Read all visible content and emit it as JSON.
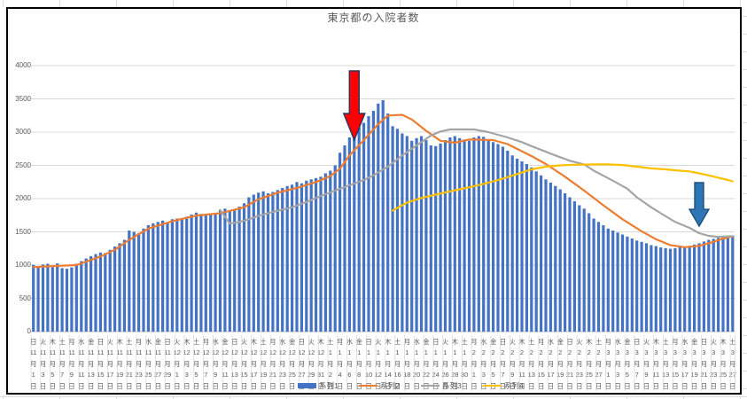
{
  "chart": {
    "title": "東京都の入院者数",
    "border_color": "#000000",
    "background": "#FFFFFF",
    "gridline_color": "#D9D9D9",
    "axis_text_color": "#595959"
  },
  "chart_data": {
    "type": "bar",
    "title": "東京都の入院者数",
    "xlabel": "",
    "ylabel": "",
    "ylim": [
      0,
      4000
    ],
    "ytick_step": 500,
    "yticks": [
      0,
      500,
      1000,
      1500,
      2000,
      2500,
      3000,
      3500,
      4000
    ],
    "x_range": "2020年11月1日(日)〜2021年3月27日(土) 毎日, ラベルは2日おき",
    "grid": true,
    "legend_position": "bottom",
    "series": [
      {
        "name": "系列1",
        "type": "bar",
        "color": "#4472C4",
        "values": [
          1005,
          985,
          1010,
          1020,
          970,
          1025,
          955,
          945,
          965,
          1020,
          1060,
          1100,
          1135,
          1165,
          1190,
          1180,
          1230,
          1280,
          1330,
          1380,
          1520,
          1500,
          1480,
          1550,
          1600,
          1630,
          1650,
          1670,
          1640,
          1690,
          1700,
          1690,
          1730,
          1760,
          1790,
          1770,
          1750,
          1760,
          1780,
          1830,
          1850,
          1820,
          1840,
          1880,
          1930,
          2020,
          2060,
          2090,
          2110,
          2080,
          2100,
          2130,
          2160,
          2190,
          2210,
          2250,
          2230,
          2270,
          2290,
          2310,
          2330,
          2380,
          2420,
          2500,
          2690,
          2800,
          2920,
          3000,
          3070,
          3140,
          3240,
          3320,
          3430,
          3480,
          3280,
          3090,
          3050,
          2980,
          2940,
          2870,
          2910,
          2940,
          2880,
          2800,
          2790,
          2830,
          2880,
          2920,
          2940,
          2910,
          2890,
          2870,
          2920,
          2940,
          2930,
          2890,
          2850,
          2820,
          2780,
          2720,
          2650,
          2600,
          2560,
          2520,
          2470,
          2410,
          2350,
          2290,
          2240,
          2190,
          2140,
          2080,
          2020,
          1960,
          1900,
          1850,
          1780,
          1700,
          1650,
          1600,
          1550,
          1520,
          1490,
          1460,
          1430,
          1400,
          1370,
          1350,
          1330,
          1300,
          1285,
          1265,
          1255,
          1245,
          1255,
          1270,
          1280,
          1290,
          1310,
          1330,
          1355,
          1380,
          1395,
          1410,
          1425,
          1435,
          1445
        ]
      },
      {
        "name": "系列2",
        "type": "line",
        "color": "#ED7D31",
        "points": [
          [
            1,
            970
          ],
          [
            5,
            985
          ],
          [
            10,
            1000
          ],
          [
            15,
            1130
          ],
          [
            18,
            1230
          ],
          [
            21,
            1380
          ],
          [
            25,
            1550
          ],
          [
            30,
            1660
          ],
          [
            35,
            1745
          ],
          [
            40,
            1780
          ],
          [
            45,
            1870
          ],
          [
            48,
            1990
          ],
          [
            52,
            2090
          ],
          [
            56,
            2160
          ],
          [
            60,
            2250
          ],
          [
            63,
            2340
          ],
          [
            65,
            2450
          ],
          [
            67,
            2650
          ],
          [
            70,
            2880
          ],
          [
            73,
            3120
          ],
          [
            75,
            3250
          ],
          [
            78,
            3260
          ],
          [
            80,
            3190
          ],
          [
            83,
            3020
          ],
          [
            86,
            2870
          ],
          [
            89,
            2840
          ],
          [
            92,
            2890
          ],
          [
            97,
            2880
          ],
          [
            100,
            2820
          ],
          [
            105,
            2640
          ],
          [
            108,
            2520
          ],
          [
            112,
            2330
          ],
          [
            116,
            2120
          ],
          [
            120,
            1900
          ],
          [
            124,
            1690
          ],
          [
            128,
            1510
          ],
          [
            131,
            1390
          ],
          [
            134,
            1300
          ],
          [
            137,
            1270
          ],
          [
            140,
            1290
          ],
          [
            143,
            1350
          ],
          [
            145,
            1400
          ],
          [
            147,
            1430
          ]
        ]
      },
      {
        "name": "系列3",
        "type": "line",
        "color": "#A5A5A5",
        "points": [
          [
            40,
            1830
          ],
          [
            42,
            1625
          ],
          [
            44,
            1650
          ],
          [
            46,
            1690
          ],
          [
            48,
            1740
          ],
          [
            51,
            1800
          ],
          [
            55,
            1870
          ],
          [
            58,
            1950
          ],
          [
            61,
            2040
          ],
          [
            64,
            2120
          ],
          [
            67,
            2200
          ],
          [
            70,
            2280
          ],
          [
            72,
            2350
          ],
          [
            75,
            2480
          ],
          [
            78,
            2650
          ],
          [
            81,
            2800
          ],
          [
            84,
            2950
          ],
          [
            86,
            3010
          ],
          [
            88,
            3040
          ],
          [
            93,
            3040
          ],
          [
            96,
            3000
          ],
          [
            100,
            2920
          ],
          [
            103,
            2850
          ],
          [
            105,
            2790
          ],
          [
            110,
            2650
          ],
          [
            113,
            2570
          ],
          [
            116,
            2515
          ],
          [
            118,
            2420
          ],
          [
            122,
            2270
          ],
          [
            125,
            2150
          ],
          [
            127,
            2020
          ],
          [
            130,
            1870
          ],
          [
            132,
            1780
          ],
          [
            135,
            1650
          ],
          [
            138,
            1560
          ],
          [
            140,
            1480
          ],
          [
            142,
            1440
          ],
          [
            144,
            1425
          ],
          [
            147,
            1435
          ]
        ]
      },
      {
        "name": "系列4",
        "type": "line",
        "color": "#FFC000",
        "points": [
          [
            76,
            1820
          ],
          [
            79,
            1940
          ],
          [
            82,
            2010
          ],
          [
            85,
            2060
          ],
          [
            88,
            2110
          ],
          [
            90,
            2140
          ],
          [
            93,
            2185
          ],
          [
            96,
            2240
          ],
          [
            99,
            2300
          ],
          [
            102,
            2370
          ],
          [
            105,
            2440
          ],
          [
            108,
            2480
          ],
          [
            111,
            2500
          ],
          [
            114,
            2510
          ],
          [
            118,
            2515
          ],
          [
            121,
            2515
          ],
          [
            124,
            2505
          ],
          [
            127,
            2480
          ],
          [
            130,
            2455
          ],
          [
            133,
            2440
          ],
          [
            136,
            2420
          ],
          [
            138,
            2410
          ],
          [
            140,
            2380
          ],
          [
            142,
            2350
          ],
          [
            144,
            2315
          ],
          [
            146,
            2280
          ],
          [
            147,
            2260
          ]
        ]
      }
    ],
    "x_labels": [
      [
        "日",
        "11",
        "1"
      ],
      [
        "火",
        "11",
        "3"
      ],
      [
        "木",
        "11",
        "5"
      ],
      [
        "土",
        "11",
        "7"
      ],
      [
        "月",
        "11",
        "9"
      ],
      [
        "水",
        "11",
        "11"
      ],
      [
        "金",
        "11",
        "13"
      ],
      [
        "日",
        "11",
        "15"
      ],
      [
        "火",
        "11",
        "17"
      ],
      [
        "木",
        "11",
        "19"
      ],
      [
        "土",
        "11",
        "21"
      ],
      [
        "月",
        "11",
        "23"
      ],
      [
        "水",
        "11",
        "25"
      ],
      [
        "金",
        "11",
        "27"
      ],
      [
        "日",
        "11",
        "29"
      ],
      [
        "火",
        "12",
        "1"
      ],
      [
        "木",
        "12",
        "3"
      ],
      [
        "土",
        "12",
        "5"
      ],
      [
        "月",
        "12",
        "7"
      ],
      [
        "水",
        "12",
        "9"
      ],
      [
        "金",
        "12",
        "11"
      ],
      [
        "日",
        "12",
        "13"
      ],
      [
        "火",
        "12",
        "15"
      ],
      [
        "木",
        "12",
        "17"
      ],
      [
        "土",
        "12",
        "19"
      ],
      [
        "月",
        "12",
        "21"
      ],
      [
        "水",
        "12",
        "23"
      ],
      [
        "金",
        "12",
        "25"
      ],
      [
        "日",
        "12",
        "27"
      ],
      [
        "火",
        "12",
        "29"
      ],
      [
        "木",
        "12",
        "31"
      ],
      [
        "土",
        "1",
        "2"
      ],
      [
        "月",
        "1",
        "4"
      ],
      [
        "水",
        "1",
        "6"
      ],
      [
        "金",
        "1",
        "8"
      ],
      [
        "日",
        "1",
        "10"
      ],
      [
        "火",
        "1",
        "12"
      ],
      [
        "木",
        "1",
        "14"
      ],
      [
        "土",
        "1",
        "16"
      ],
      [
        "月",
        "1",
        "18"
      ],
      [
        "水",
        "1",
        "20"
      ],
      [
        "金",
        "1",
        "22"
      ],
      [
        "日",
        "1",
        "24"
      ],
      [
        "火",
        "1",
        "26"
      ],
      [
        "木",
        "1",
        "28"
      ],
      [
        "土",
        "1",
        "30"
      ],
      [
        "月",
        "2",
        "1"
      ],
      [
        "水",
        "2",
        "3"
      ],
      [
        "金",
        "2",
        "5"
      ],
      [
        "日",
        "2",
        "7"
      ],
      [
        "火",
        "2",
        "9"
      ],
      [
        "木",
        "2",
        "11"
      ],
      [
        "土",
        "2",
        "13"
      ],
      [
        "月",
        "2",
        "15"
      ],
      [
        "水",
        "2",
        "17"
      ],
      [
        "金",
        "2",
        "19"
      ],
      [
        "日",
        "2",
        "21"
      ],
      [
        "火",
        "2",
        "23"
      ],
      [
        "木",
        "2",
        "25"
      ],
      [
        "土",
        "2",
        "27"
      ],
      [
        "月",
        "3",
        "1"
      ],
      [
        "水",
        "3",
        "3"
      ],
      [
        "金",
        "3",
        "5"
      ],
      [
        "日",
        "3",
        "7"
      ],
      [
        "火",
        "3",
        "9"
      ],
      [
        "木",
        "3",
        "11"
      ],
      [
        "土",
        "3",
        "13"
      ],
      [
        "月",
        "3",
        "15"
      ],
      [
        "水",
        "3",
        "17"
      ],
      [
        "金",
        "3",
        "19"
      ],
      [
        "日",
        "3",
        "21"
      ],
      [
        "火",
        "3",
        "23"
      ],
      [
        "木",
        "3",
        "25"
      ],
      [
        "土",
        "3",
        "27"
      ]
    ],
    "month_suffix": "月",
    "day_suffix": "日"
  },
  "legend": {
    "items": [
      {
        "label": "系列1",
        "color": "#4472C4",
        "swatch": "bar"
      },
      {
        "label": "系列2",
        "color": "#ED7D31",
        "swatch": "line"
      },
      {
        "label": "系列3",
        "color": "#A5A5A5",
        "swatch": "line"
      },
      {
        "label": "系列4",
        "color": "#FFC000",
        "swatch": "line"
      }
    ]
  },
  "annotations": {
    "arrows": [
      {
        "name": "red-down-arrow",
        "fill": "#FF0000",
        "stroke": "#203864",
        "day": 68,
        "value_top": 3920,
        "value_tip": 2880,
        "shaft_w": 11,
        "head_w": 24,
        "head_h": 30
      },
      {
        "name": "blue-down-arrow",
        "fill": "#2E75B6",
        "stroke": "#1F4E79",
        "day": 140,
        "value_top": 2240,
        "value_tip": 1585,
        "shaft_w": 10,
        "head_w": 22,
        "head_h": 19
      }
    ]
  }
}
